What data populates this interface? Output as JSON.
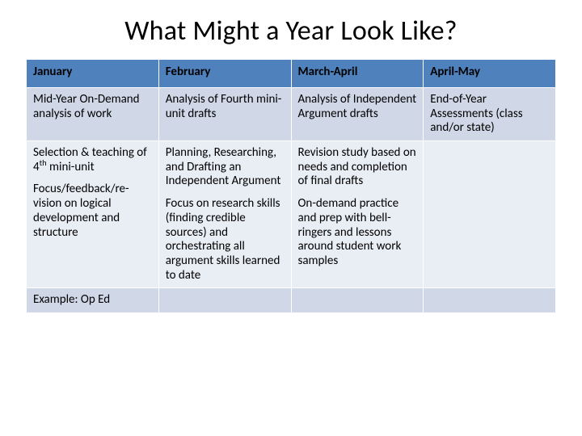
{
  "title": "What Might a Year Look Like?",
  "table": {
    "columns": [
      "January",
      "February",
      "March-April",
      "April-May"
    ],
    "header_bg": "#4f81bd",
    "band_light": "#d0d8e8",
    "band_dark": "#e9edf4",
    "text_color": "#000000",
    "title_fontsize": 34,
    "cell_fontsize": 15,
    "rows": [
      {
        "band": "light",
        "cells": [
          [
            {
              "text": "Mid-Year On-Demand analysis of work"
            }
          ],
          [
            {
              "text": "Analysis of Fourth mini-unit drafts"
            }
          ],
          [
            {
              "text": "Analysis of Independent Argument drafts"
            }
          ],
          [
            {
              "text": "End-of-Year Assessments (class and/or state)"
            }
          ]
        ]
      },
      {
        "band": "dark",
        "cells": [
          [
            {
              "text_html": "Selection & teaching of 4<span class=\"sup\">th</span> mini-unit"
            },
            {
              "text": "Focus/feedback/re-vision on logical development and structure"
            }
          ],
          [
            {
              "text": "Planning, Researching, and Drafting an Independent Argument"
            },
            {
              "text": "Focus on research skills (finding credible sources) and orchestrating all argument skills learned to date"
            }
          ],
          [
            {
              "text": "Revision study based on needs and completion of final drafts"
            },
            {
              "text": "On-demand practice and prep with bell-ringers and lessons around student work samples"
            }
          ],
          [
            {
              "text": ""
            }
          ]
        ]
      },
      {
        "band": "light",
        "cells": [
          [
            {
              "text": "Example:  Op Ed"
            }
          ],
          [
            {
              "text": ""
            }
          ],
          [
            {
              "text": ""
            }
          ],
          [
            {
              "text": ""
            }
          ]
        ]
      }
    ]
  }
}
